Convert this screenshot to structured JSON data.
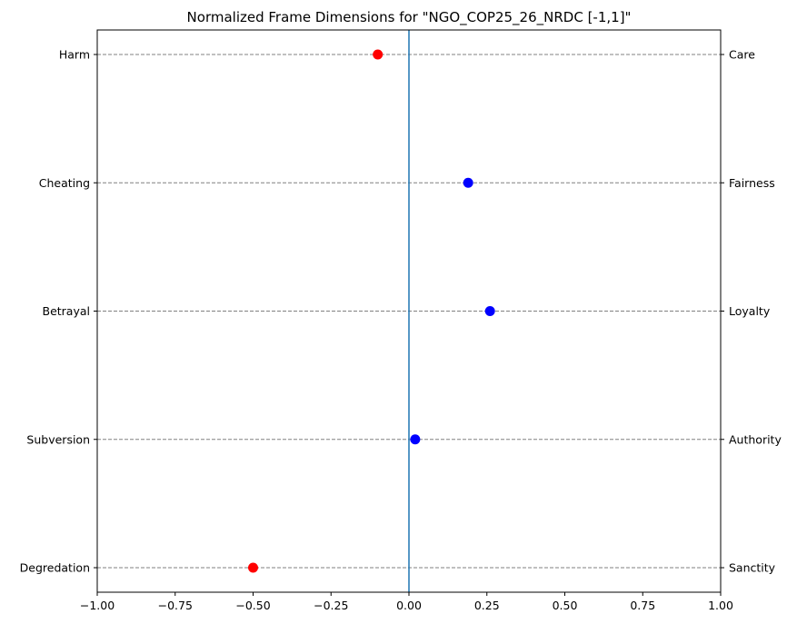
{
  "chart_data": {
    "type": "scatter",
    "title": "Normalized Frame Dimensions for \"NGO_COP25_26_NRDC [-1,1]\"",
    "xlabel": "",
    "ylabel": "",
    "xlim": [
      -1.0,
      1.0
    ],
    "x_ticks": [
      "−1.00",
      "−0.75",
      "−0.50",
      "−0.25",
      "0.00",
      "0.25",
      "0.50",
      "0.75",
      "1.00"
    ],
    "x_tick_values": [
      -1.0,
      -0.75,
      -0.5,
      -0.25,
      0.0,
      0.25,
      0.5,
      0.75,
      1.0
    ],
    "grid": "horizontal dashed lines at each dimension",
    "reference_line": {
      "x": 0.0,
      "color": "#1f77b4"
    },
    "positive_color": "#0000ff",
    "negative_color": "#ff0000",
    "dimensions": [
      {
        "left_label": "Harm",
        "right_label": "Care",
        "value": -0.1
      },
      {
        "left_label": "Cheating",
        "right_label": "Fairness",
        "value": 0.19
      },
      {
        "left_label": "Betrayal",
        "right_label": "Loyalty",
        "value": 0.26
      },
      {
        "left_label": "Subversion",
        "right_label": "Authority",
        "value": 0.02
      },
      {
        "left_label": "Degredation",
        "right_label": "Sanctity",
        "value": -0.5
      }
    ]
  }
}
